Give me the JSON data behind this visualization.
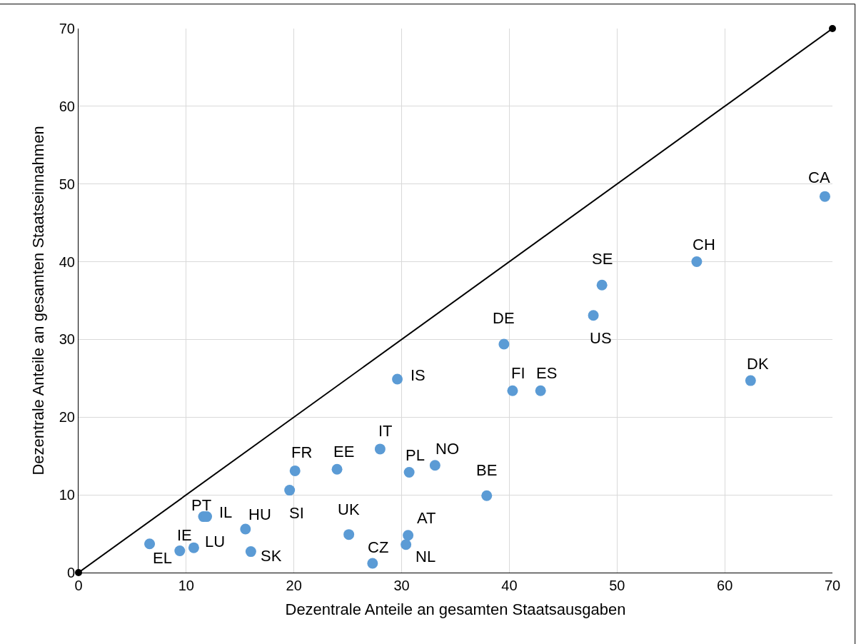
{
  "chart_data": {
    "type": "scatter",
    "xlabel": "Dezentrale Anteile an gesamten Staatsausgaben",
    "ylabel": "Dezentrale Anteile an gesamten Staatseinnahmen",
    "xlim": [
      0,
      70
    ],
    "ylim": [
      0,
      70
    ],
    "xticks": [
      0,
      10,
      20,
      30,
      40,
      50,
      60,
      70
    ],
    "yticks": [
      0,
      10,
      20,
      30,
      40,
      50,
      60,
      70
    ],
    "grid": true,
    "marker": "circle",
    "series": [
      {
        "type": "line",
        "color": "#000000",
        "x": [
          0,
          70
        ],
        "values": [
          0,
          70
        ]
      },
      {
        "color": "#5b9bd5",
        "x": [
          6.6,
          9.4,
          10.7,
          11.6,
          11.9,
          15.5,
          16.0,
          19.6,
          20.1,
          24.0,
          25.1,
          27.3,
          28.0,
          29.6,
          30.6,
          30.4,
          30.7,
          33.1,
          37.9,
          39.5,
          40.3,
          42.9,
          47.8,
          48.6,
          57.4,
          62.4,
          69.3
        ],
        "values": [
          3.7,
          2.8,
          3.2,
          7.2,
          7.2,
          5.6,
          2.7,
          10.6,
          13.1,
          13.3,
          4.9,
          1.2,
          15.9,
          24.9,
          4.8,
          3.6,
          12.9,
          13.8,
          9.9,
          29.4,
          23.4,
          23.4,
          33.1,
          37.0,
          40.0,
          24.7,
          48.4
        ]
      }
    ],
    "annotations": [
      {
        "text": "EL",
        "x": 6.6,
        "y": 3.7
      },
      {
        "text": "IE",
        "x": 9.4,
        "y": 2.8
      },
      {
        "text": "LU",
        "x": 10.7,
        "y": 3.2
      },
      {
        "text": "PT",
        "x": 11.6,
        "y": 7.2
      },
      {
        "text": "IL",
        "x": 11.9,
        "y": 7.2
      },
      {
        "text": "HU",
        "x": 15.5,
        "y": 5.6
      },
      {
        "text": "SK",
        "x": 16.0,
        "y": 2.7
      },
      {
        "text": "SI",
        "x": 19.6,
        "y": 10.6
      },
      {
        "text": "FR",
        "x": 20.1,
        "y": 13.1
      },
      {
        "text": "EE",
        "x": 24.0,
        "y": 13.3
      },
      {
        "text": "UK",
        "x": 25.1,
        "y": 4.9
      },
      {
        "text": "CZ",
        "x": 27.3,
        "y": 1.2
      },
      {
        "text": "IT",
        "x": 28.0,
        "y": 15.9
      },
      {
        "text": "IS",
        "x": 29.6,
        "y": 24.9
      },
      {
        "text": "AT",
        "x": 30.6,
        "y": 4.8
      },
      {
        "text": "NL",
        "x": 30.4,
        "y": 3.6
      },
      {
        "text": "PL",
        "x": 30.7,
        "y": 12.9
      },
      {
        "text": "NO",
        "x": 33.1,
        "y": 13.8
      },
      {
        "text": "BE",
        "x": 37.9,
        "y": 9.9
      },
      {
        "text": "DE",
        "x": 39.5,
        "y": 29.4
      },
      {
        "text": "FI",
        "x": 40.3,
        "y": 23.4
      },
      {
        "text": "ES",
        "x": 42.9,
        "y": 23.4
      },
      {
        "text": "US",
        "x": 47.8,
        "y": 33.1
      },
      {
        "text": "SE",
        "x": 48.6,
        "y": 37.0
      },
      {
        "text": "CH",
        "x": 57.4,
        "y": 40.0
      },
      {
        "text": "DK",
        "x": 62.4,
        "y": 24.7
      },
      {
        "text": "CA",
        "x": 69.3,
        "y": 48.4
      }
    ]
  }
}
